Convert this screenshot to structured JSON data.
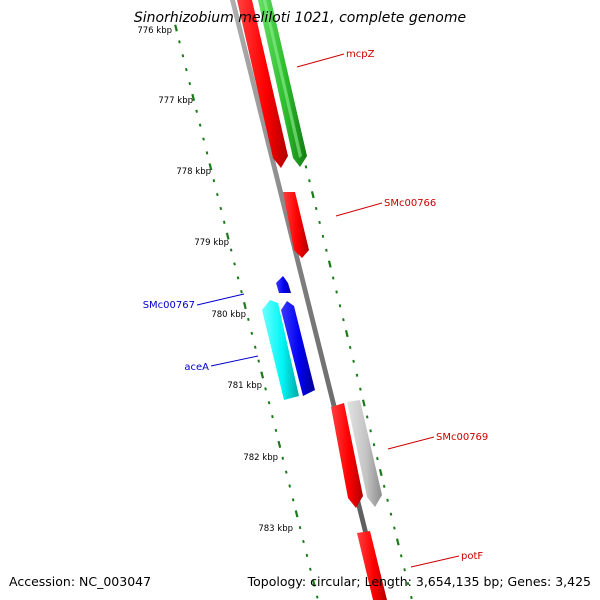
{
  "title": "Sinorhizobium meliloti 1021, complete genome",
  "footer": {
    "accession": "Accession: NC_003047",
    "summary": "Topology: circular; Length: 3,654,135 bp; Genes: 3,425"
  },
  "kbp_labels": [
    "776 kbp",
    "777 kbp",
    "778 kbp",
    "779 kbp",
    "780 kbp",
    "781 kbp",
    "782 kbp",
    "783 kbp"
  ],
  "genes": [
    {
      "name": "mcpZ",
      "strand": "forward",
      "color": "#ff0000",
      "labeled": true
    },
    {
      "name": "",
      "strand": "forward",
      "color": "#33cc33",
      "labeled": false
    },
    {
      "name": "SMc00766",
      "strand": "forward",
      "color": "#ff0000",
      "labeled": true
    },
    {
      "name": "SMc00767",
      "strand": "reverse",
      "color": "#0000ff",
      "labeled": true
    },
    {
      "name": "",
      "strand": "forward",
      "color": "#0000ff",
      "labeled": false
    },
    {
      "name": "aceA",
      "strand": "reverse",
      "color": "#00ffff",
      "labeled": true
    },
    {
      "name": "",
      "strand": "forward",
      "color": "#ff0000",
      "labeled": false
    },
    {
      "name": "SMc00769",
      "strand": "forward",
      "color": "#c0c0c0",
      "labeled": true
    },
    {
      "name": "potF",
      "strand": "forward",
      "color": "#ff0000",
      "labeled": true
    }
  ],
  "colors": {
    "backbone": "#777777",
    "tick": "#1a7a1a",
    "forward_label": "#cc0000",
    "reverse_label": "#0000cc"
  }
}
